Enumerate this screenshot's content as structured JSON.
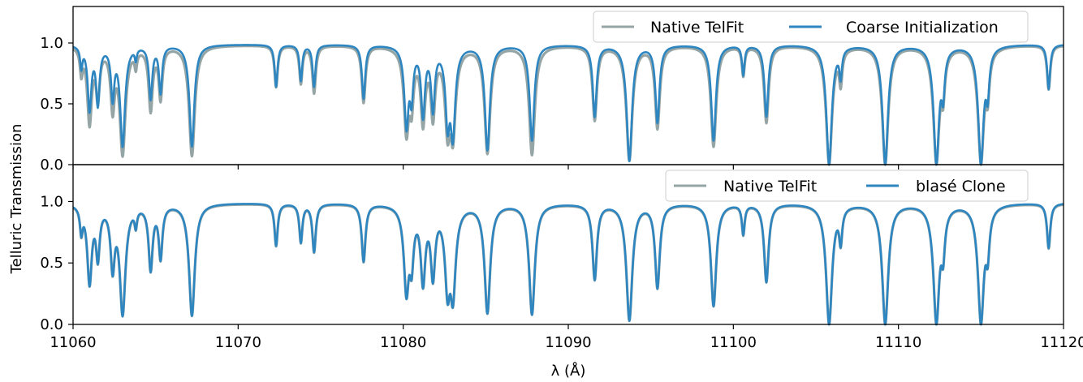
{
  "chart_data": [
    {
      "type": "line",
      "ylabel": "Telluric Transmission",
      "xlim": [
        11060,
        11120
      ],
      "ylim": [
        0.0,
        1.3
      ],
      "xticks": [
        11060,
        11070,
        11080,
        11090,
        11100,
        11110,
        11120
      ],
      "yticks": [
        0.0,
        0.5,
        1.0
      ],
      "ytick_labels": [
        "0.0",
        "0.5",
        "1.0"
      ],
      "legend_position": "upper right",
      "series": [
        {
          "name": "Native TelFit",
          "color": "#95a5a6"
        },
        {
          "name": "Coarse Initialization",
          "color": "#2e86c1"
        }
      ],
      "absorption_lines": [
        {
          "x": 11060.5,
          "native_min": 0.78,
          "model_min": 0.82
        },
        {
          "x": 11061.0,
          "native_min": 0.33,
          "model_min": 0.45
        },
        {
          "x": 11061.5,
          "native_min": 0.55,
          "model_min": 0.5
        },
        {
          "x": 11062.4,
          "native_min": 0.45,
          "model_min": 0.55
        },
        {
          "x": 11063.0,
          "native_min": 0.07,
          "model_min": 0.15
        },
        {
          "x": 11063.8,
          "native_min": 0.85,
          "model_min": 0.9
        },
        {
          "x": 11064.7,
          "native_min": 0.45,
          "model_min": 0.55
        },
        {
          "x": 11065.3,
          "native_min": 0.55,
          "model_min": 0.6
        },
        {
          "x": 11067.2,
          "native_min": 0.07,
          "model_min": 0.15
        },
        {
          "x": 11072.3,
          "native_min": 0.65,
          "model_min": 0.65
        },
        {
          "x": 11073.8,
          "native_min": 0.68,
          "model_min": 0.7
        },
        {
          "x": 11074.6,
          "native_min": 0.6,
          "model_min": 0.65
        },
        {
          "x": 11077.6,
          "native_min": 0.52,
          "model_min": 0.55
        },
        {
          "x": 11080.2,
          "native_min": 0.24,
          "model_min": 0.3
        },
        {
          "x": 11080.5,
          "native_min": 0.48,
          "model_min": 0.55
        },
        {
          "x": 11081.2,
          "native_min": 0.33,
          "model_min": 0.4
        },
        {
          "x": 11081.8,
          "native_min": 0.38,
          "model_min": 0.45
        },
        {
          "x": 11082.7,
          "native_min": 0.22,
          "model_min": 0.3
        },
        {
          "x": 11083.0,
          "native_min": 0.18,
          "model_min": 0.2
        },
        {
          "x": 11085.1,
          "native_min": 0.09,
          "model_min": 0.12
        },
        {
          "x": 11087.8,
          "native_min": 0.08,
          "model_min": 0.2
        },
        {
          "x": 11091.6,
          "native_min": 0.37,
          "model_min": 0.4
        },
        {
          "x": 11093.7,
          "native_min": 0.03,
          "model_min": 0.03
        },
        {
          "x": 11095.4,
          "native_min": 0.3,
          "model_min": 0.35
        },
        {
          "x": 11098.8,
          "native_min": 0.15,
          "model_min": 0.2
        },
        {
          "x": 11100.6,
          "native_min": 0.75,
          "model_min": 0.75
        },
        {
          "x": 11102.0,
          "native_min": 0.35,
          "model_min": 0.4
        },
        {
          "x": 11105.8,
          "native_min": 0.0,
          "model_min": 0.0
        },
        {
          "x": 11106.5,
          "native_min": 0.7,
          "model_min": 0.75
        },
        {
          "x": 11109.2,
          "native_min": 0.0,
          "model_min": 0.0
        },
        {
          "x": 11112.3,
          "native_min": 0.0,
          "model_min": 0.0
        },
        {
          "x": 11112.7,
          "native_min": 0.6,
          "model_min": 0.6
        },
        {
          "x": 11115.0,
          "native_min": 0.0,
          "model_min": 0.0
        },
        {
          "x": 11115.4,
          "native_min": 0.6,
          "model_min": 0.6
        },
        {
          "x": 11119.1,
          "native_min": 0.63,
          "model_min": 0.63
        }
      ]
    },
    {
      "type": "line",
      "xlabel": "λ (Å)",
      "xlim": [
        11060,
        11120
      ],
      "ylim": [
        0.0,
        1.3
      ],
      "xticks": [
        11060,
        11070,
        11080,
        11090,
        11100,
        11110,
        11120
      ],
      "xtick_labels": [
        "11060",
        "11070",
        "11080",
        "11090",
        "11100",
        "11110",
        "11120"
      ],
      "yticks": [
        0.0,
        0.5,
        1.0
      ],
      "ytick_labels": [
        "0.0",
        "0.5",
        "1.0"
      ],
      "legend_position": "upper right",
      "series": [
        {
          "name": "Native TelFit",
          "color": "#95a5a6"
        },
        {
          "name": "blasé Clone",
          "color": "#2e86c1"
        }
      ]
    }
  ]
}
